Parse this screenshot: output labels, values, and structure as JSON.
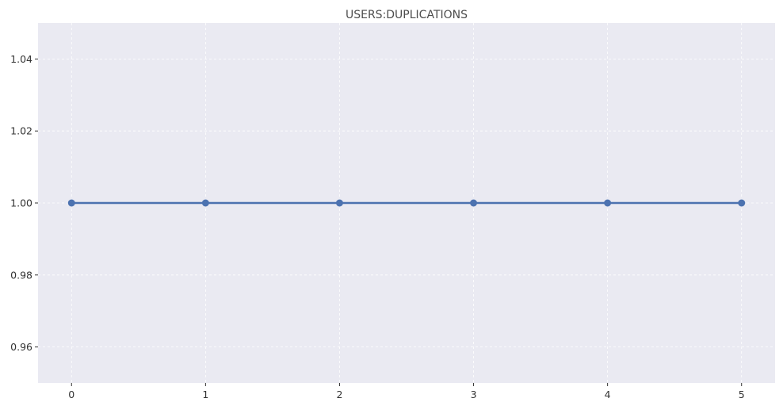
{
  "chart_data": {
    "type": "line",
    "title": "USERS:DUPLICATIONS",
    "xlabel": "",
    "ylabel": "",
    "x": [
      0,
      1,
      2,
      3,
      4,
      5
    ],
    "series": [
      {
        "values": [
          1.0,
          1.0,
          1.0,
          1.0,
          1.0,
          1.0
        ],
        "color": "#4c72b0",
        "marker": "circle"
      }
    ],
    "xlim": [
      -0.25,
      5.25
    ],
    "ylim": [
      0.95,
      1.05
    ],
    "xticks": [
      0,
      1,
      2,
      3,
      4,
      5
    ],
    "xtick_labels": [
      "0",
      "1",
      "2",
      "3",
      "4",
      "5"
    ],
    "yticks": [
      0.96,
      0.98,
      1.0,
      1.02,
      1.04
    ],
    "ytick_labels": [
      "0.96",
      "0.98",
      "1.00",
      "1.02",
      "1.04"
    ],
    "grid": true,
    "grid_style": "dashed",
    "background_color": "#eaeaf2",
    "grid_color": "#ffffff"
  }
}
